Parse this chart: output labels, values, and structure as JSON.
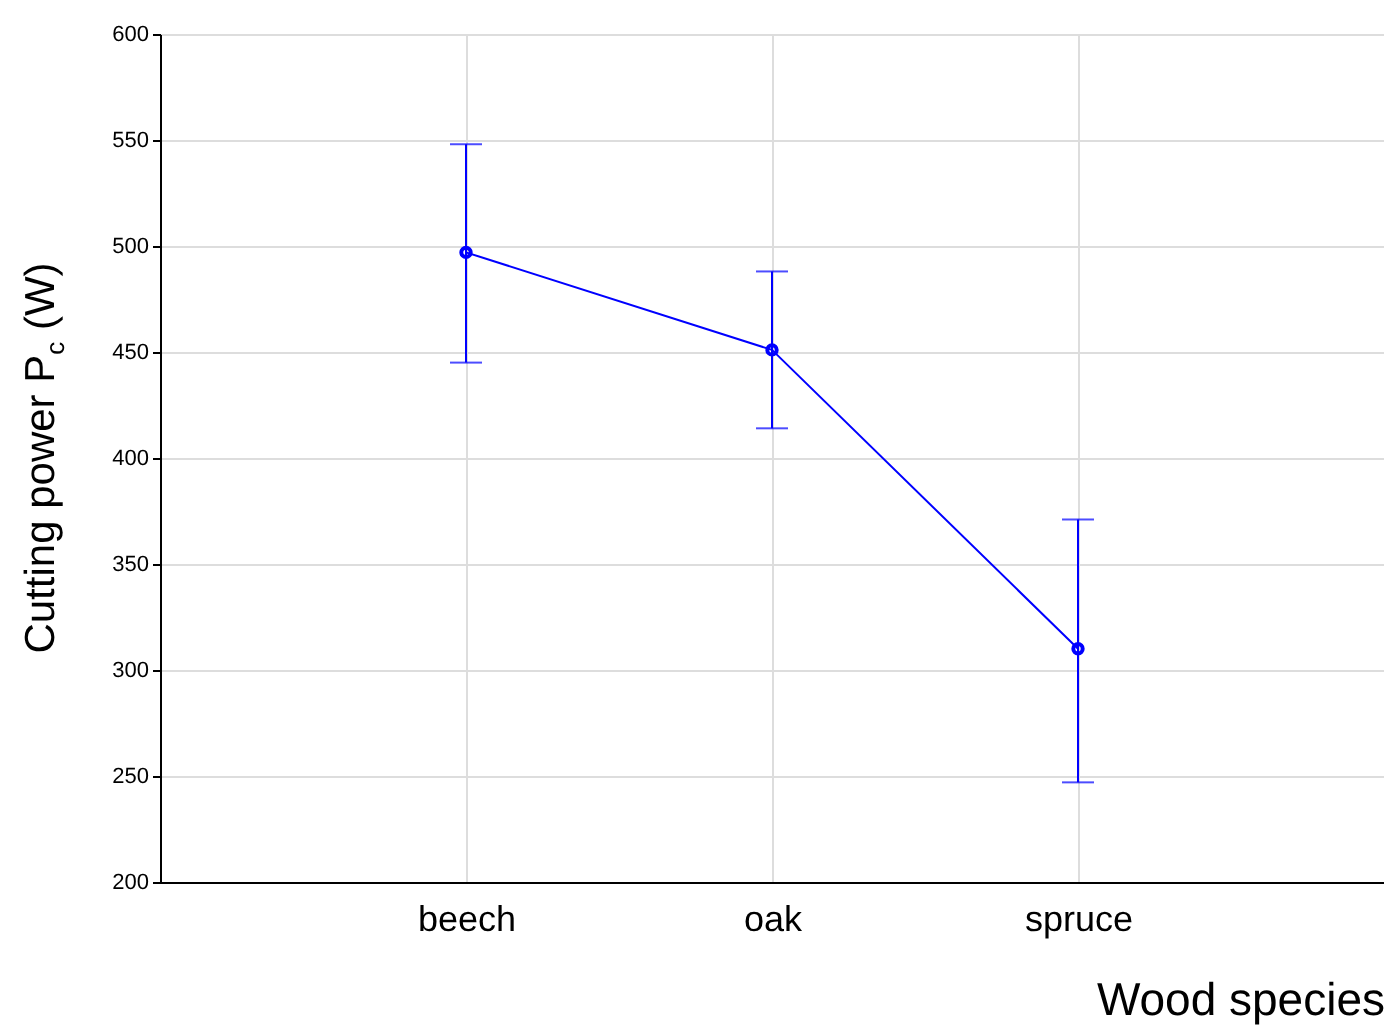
{
  "chart_data": {
    "type": "line",
    "xlabel": "Wood species",
    "ylabel": "Cutting power P$_{c}$ (W)",
    "categories": [
      "beech",
      "oak",
      "spruce"
    ],
    "series": [
      {
        "color": "#0000ff",
        "values": [
          497,
          451,
          310
        ],
        "errors": [
          [
            445,
            548
          ],
          [
            414,
            488
          ],
          [
            247,
            371
          ]
        ]
      }
    ],
    "ylim": [
      200,
      600
    ],
    "yticks": [
      200,
      250,
      300,
      350,
      400,
      450,
      500,
      550,
      600
    ],
    "grid": true,
    "marker": "circle",
    "line_style": "solid"
  }
}
